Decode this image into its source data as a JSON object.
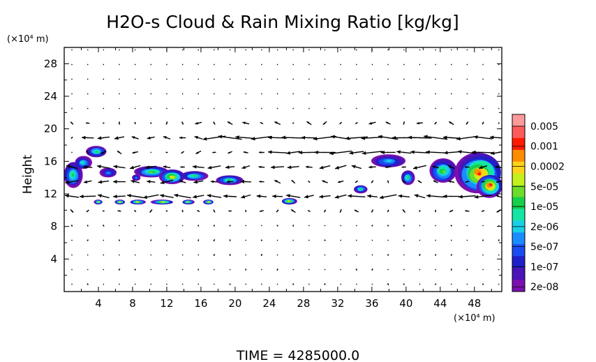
{
  "chart_data": {
    "type": "heatmap",
    "title": "H2O-s Cloud & Rain Mixing Ratio [kg/kg]",
    "ylabel": "Height",
    "y_unit_label": "(×10⁴ m)",
    "x_unit_label": "(×10⁴ m)",
    "footer": "TIME  =  4285000.0",
    "xlim": [
      0,
      51.2
    ],
    "ylim": [
      0,
      30
    ],
    "x_ticks": [
      "4",
      "8",
      "12",
      "16",
      "20",
      "24",
      "28",
      "32",
      "36",
      "40",
      "44",
      "48"
    ],
    "y_ticks": [
      "4",
      "8",
      "12",
      "16",
      "20",
      "24",
      "28"
    ],
    "colorbar": {
      "labels": [
        "0.005",
        "0.001",
        "0.0002",
        "5e-05",
        "1e-05",
        "2e-06",
        "5e-07",
        "1e-07",
        "2e-08"
      ],
      "colors": [
        "#ff9a9a",
        "#ff5a5a",
        "#ff1a00",
        "#ff8c00",
        "#ffd21a",
        "#c6ef1e",
        "#6edc2a",
        "#16d04a",
        "#13e6a4",
        "#17d0e6",
        "#1a8cff",
        "#1a4cf0",
        "#2020c8",
        "#4a14b8",
        "#7a10b0"
      ]
    },
    "cloud_regions": [
      {
        "x": 1.0,
        "y": 14.3,
        "rx": 1.1,
        "ry": 1.6,
        "peak": 0.55
      },
      {
        "x": 2.2,
        "y": 15.8,
        "rx": 1.0,
        "ry": 0.8,
        "peak": 0.45
      },
      {
        "x": 3.8,
        "y": 17.2,
        "rx": 1.2,
        "ry": 0.7,
        "peak": 0.5
      },
      {
        "x": 5.2,
        "y": 14.6,
        "rx": 1.0,
        "ry": 0.6,
        "peak": 0.35
      },
      {
        "x": 10.3,
        "y": 14.7,
        "rx": 2.0,
        "ry": 0.7,
        "peak": 0.6
      },
      {
        "x": 12.6,
        "y": 14.1,
        "rx": 1.5,
        "ry": 0.9,
        "peak": 0.7
      },
      {
        "x": 15.2,
        "y": 14.2,
        "rx": 1.6,
        "ry": 0.6,
        "peak": 0.5
      },
      {
        "x": 8.4,
        "y": 14.0,
        "rx": 0.5,
        "ry": 0.4,
        "peak": 0.3
      },
      {
        "x": 19.3,
        "y": 13.7,
        "rx": 1.6,
        "ry": 0.6,
        "peak": 0.55
      },
      {
        "x": 34.7,
        "y": 12.6,
        "rx": 0.8,
        "ry": 0.5,
        "peak": 0.55
      },
      {
        "x": 37.9,
        "y": 16.0,
        "rx": 2.0,
        "ry": 0.8,
        "peak": 0.4
      },
      {
        "x": 40.2,
        "y": 14.0,
        "rx": 0.8,
        "ry": 0.9,
        "peak": 0.5
      },
      {
        "x": 44.3,
        "y": 14.8,
        "rx": 1.6,
        "ry": 1.5,
        "peak": 0.6
      },
      {
        "x": 48.6,
        "y": 14.5,
        "rx": 2.7,
        "ry": 2.5,
        "peak": 0.85
      },
      {
        "x": 49.8,
        "y": 13.0,
        "rx": 1.5,
        "ry": 1.4,
        "peak": 0.9
      },
      {
        "x": 4.0,
        "y": 11.0,
        "rx": 0.5,
        "ry": 0.3,
        "peak": 0.65
      },
      {
        "x": 6.5,
        "y": 11.0,
        "rx": 0.6,
        "ry": 0.3,
        "peak": 0.7
      },
      {
        "x": 8.6,
        "y": 11.0,
        "rx": 0.9,
        "ry": 0.3,
        "peak": 0.75
      },
      {
        "x": 11.5,
        "y": 11.0,
        "rx": 1.3,
        "ry": 0.3,
        "peak": 0.7
      },
      {
        "x": 14.5,
        "y": 11.0,
        "rx": 0.7,
        "ry": 0.3,
        "peak": 0.65
      },
      {
        "x": 16.9,
        "y": 11.0,
        "rx": 0.6,
        "ry": 0.3,
        "peak": 0.7
      },
      {
        "x": 26.3,
        "y": 11.1,
        "rx": 0.9,
        "ry": 0.4,
        "peak": 0.7
      }
    ],
    "wind_field": {
      "x_step": 1.85,
      "y_step": 1.8,
      "jets": [
        {
          "y": 19.6,
          "x0": 2,
          "x1": 51,
          "u": -2.4
        },
        {
          "y": 18.5,
          "x0": 16,
          "x1": 51,
          "u": -2.0
        },
        {
          "y": 17.0,
          "x0": 24,
          "x1": 51,
          "u": -2.4
        },
        {
          "y": 15.4,
          "x0": 0,
          "x1": 51,
          "u": -1.2
        },
        {
          "y": 13.2,
          "x0": 0,
          "x1": 24,
          "u": -1.4
        },
        {
          "y": 11.6,
          "x0": 0,
          "x1": 50,
          "u": -1.9
        }
      ]
    }
  }
}
